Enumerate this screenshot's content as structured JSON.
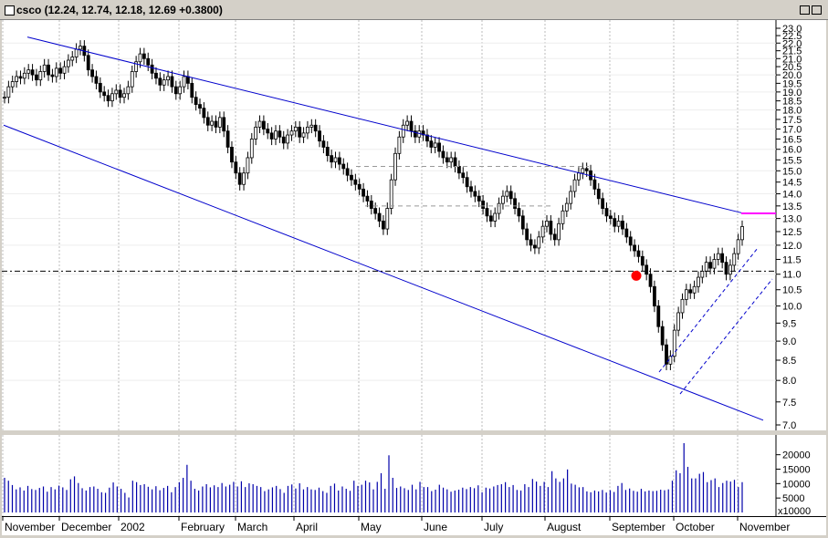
{
  "window": {
    "title": "csco (12.24, 12.74, 12.18, 12.69 +0.3800)",
    "buttons": [
      "restore",
      "close"
    ]
  },
  "colors": {
    "background": "#ffffff",
    "frame": "#d4d0c8",
    "channel": "#0000cc",
    "volume": "#0000aa",
    "resistance": "#ff00ff",
    "signal": "#ff0000",
    "grid": "#bbbbbb"
  },
  "chart_data": {
    "type": "candlestick",
    "symbol": "csco",
    "scale": "log",
    "ylim": [
      7.0,
      23.0
    ],
    "y_ticks": [
      "23.0",
      "22.5",
      "22.0",
      "21.5",
      "21.0",
      "20.5",
      "20.0",
      "19.5",
      "19.0",
      "18.5",
      "18.0",
      "17.5",
      "17.0",
      "16.5",
      "16.0",
      "15.5",
      "15.0",
      "14.5",
      "14.0",
      "13.5",
      "13.0",
      "12.5",
      "12.0",
      "11.5",
      "11.0",
      "10.5",
      "10.0",
      "9.5",
      "9.0",
      "8.5",
      "8.0",
      "7.5",
      "7.0"
    ],
    "x_labels": [
      "November",
      "December",
      "2002",
      "February",
      "March",
      "April",
      "May",
      "June",
      "July",
      "August",
      "September",
      "October",
      "November"
    ],
    "last_bar": {
      "open": 12.24,
      "high": 12.74,
      "low": 12.18,
      "close": 12.69,
      "change": "+0.3800"
    },
    "price_series_closes": [
      18.7,
      19.3,
      19.6,
      19.9,
      19.8,
      20.1,
      20.3,
      20.0,
      19.7,
      20.2,
      20.6,
      20.0,
      19.9,
      20.4,
      20.1,
      20.5,
      20.9,
      21.1,
      21.6,
      21.8,
      21.2,
      20.3,
      19.9,
      19.5,
      19.0,
      18.8,
      18.5,
      18.9,
      19.1,
      18.7,
      18.9,
      19.3,
      20.2,
      20.8,
      21.3,
      21.0,
      20.6,
      20.1,
      19.8,
      19.4,
      19.7,
      19.9,
      19.3,
      18.9,
      19.3,
      19.9,
      19.5,
      18.7,
      18.3,
      18.1,
      17.6,
      17.2,
      17.4,
      17.1,
      17.6,
      16.9,
      16.1,
      15.4,
      14.9,
      14.4,
      14.9,
      15.6,
      16.5,
      17.1,
      17.4,
      17.0,
      16.8,
      16.5,
      16.9,
      16.6,
      16.3,
      16.7,
      16.9,
      17.1,
      16.6,
      16.8,
      17.1,
      17.2,
      16.9,
      16.4,
      16.1,
      15.7,
      15.4,
      15.6,
      15.3,
      15.1,
      14.8,
      14.6,
      14.4,
      14.2,
      13.9,
      13.7,
      13.4,
      13.2,
      12.9,
      12.6,
      13.4,
      14.6,
      15.8,
      16.6,
      17.2,
      17.4,
      16.9,
      16.6,
      16.9,
      16.7,
      16.4,
      16.1,
      16.3,
      15.9,
      15.6,
      15.4,
      15.6,
      15.2,
      14.9,
      14.7,
      14.3,
      14.1,
      13.9,
      13.7,
      13.4,
      13.1,
      12.9,
      13.2,
      13.6,
      13.9,
      14.1,
      13.8,
      13.4,
      13.1,
      12.6,
      12.2,
      12.0,
      11.9,
      12.3,
      12.7,
      12.9,
      12.4,
      12.2,
      12.8,
      13.3,
      13.6,
      14.1,
      14.6,
      14.9,
      15.1,
      15.0,
      14.6,
      14.2,
      13.8,
      13.4,
      13.1,
      13.0,
      12.7,
      12.9,
      12.6,
      12.3,
      12.0,
      11.8,
      11.6,
      11.3,
      11.0,
      10.6,
      10.0,
      9.4,
      8.9,
      8.4,
      8.6,
      9.3,
      9.8,
      10.2,
      10.5,
      10.4,
      10.6,
      10.9,
      11.1,
      11.4,
      11.2,
      11.5,
      11.7,
      11.4,
      11.0,
      11.3,
      11.7,
      12.2,
      12.69
    ],
    "overlays": {
      "upper_channel": [
        [
          "start",
          22.4
        ],
        [
          "end",
          13.2
        ]
      ],
      "lower_channel": [
        [
          "start",
          17.2
        ],
        [
          "end",
          7.1
        ]
      ],
      "horizontal_level": 11.1,
      "resistance_level": 13.2,
      "dashed_levels": [
        15.2,
        13.5
      ]
    },
    "volume": {
      "unit_label": "x10000",
      "ticks": [
        "20000",
        "15000",
        "10000",
        "5000"
      ],
      "values": [
        12000,
        11000,
        9500,
        8000,
        8700,
        7600,
        9200,
        8100,
        7800,
        8500,
        9000,
        7200,
        8800,
        8000,
        9300,
        8700,
        7800,
        11500,
        12500,
        10200,
        8400,
        7600,
        8800,
        9000,
        8200,
        7000,
        6800,
        8600,
        10400,
        9000,
        8200,
        6800,
        5200,
        11000,
        10500,
        9500,
        9800,
        8900,
        8000,
        9100,
        7700,
        8500,
        9200,
        7000,
        8800,
        10500,
        12000,
        16500,
        11000,
        8200,
        7600,
        9000,
        9800,
        8700,
        9400,
        8800,
        10200,
        9000,
        9600,
        10600,
        9000,
        10800,
        8800,
        10100,
        9800,
        9200,
        8800,
        7400,
        8000,
        8700,
        9200,
        8100,
        6800,
        9200,
        9700,
        8300,
        10100,
        8000,
        8800,
        8000,
        7800,
        8600,
        7400,
        6800,
        9200,
        10000,
        7600,
        9000,
        8200,
        7500,
        11000,
        9200,
        9600,
        11000,
        10400,
        8000,
        10600,
        13600,
        8200,
        19800,
        12000,
        8500,
        9000,
        8400,
        7800,
        9600,
        8000,
        10600,
        8800,
        8800,
        7400,
        7900,
        9600,
        8600,
        8000,
        7200,
        7600,
        7900,
        8600,
        8100,
        8800,
        8400,
        9400,
        7000,
        8600,
        8300,
        9000,
        9500,
        9800,
        10500,
        8800,
        9500,
        7800,
        7600,
        9800,
        8800,
        11600,
        10700,
        9200,
        10600,
        8800,
        14300,
        11800,
        10600,
        11800,
        14900,
        10000,
        9600,
        8700,
        8800,
        7300,
        7000,
        7600,
        7300,
        7800,
        6900,
        7700,
        7100,
        9200,
        10200,
        7800,
        8300,
        7500,
        7200,
        8200,
        7300,
        7600,
        7400,
        7500,
        7900,
        7700,
        8000,
        11000,
        14600,
        13600,
        24000,
        15800,
        11800,
        11800,
        13400,
        14000,
        10500,
        11200,
        11800,
        8800,
        10200,
        11000,
        10700,
        11300,
        8800,
        10500
      ]
    }
  }
}
